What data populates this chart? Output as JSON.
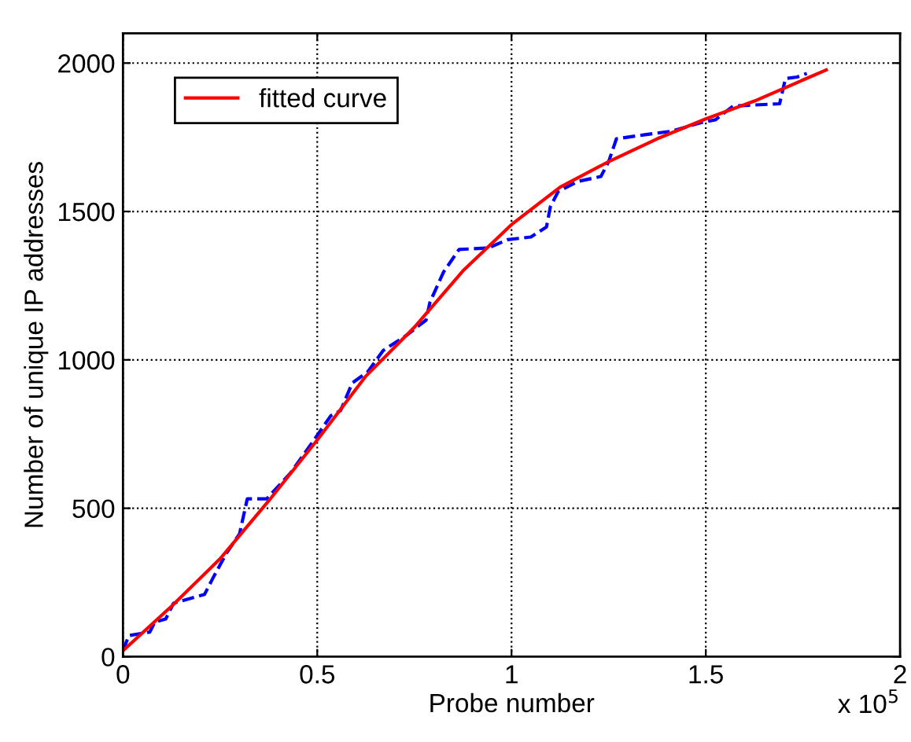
{
  "chart_data": {
    "type": "line",
    "xlabel": "Probe number",
    "ylabel": "Number of unique IP addresses",
    "annotations": [
      "x 10$^{5}$"
    ],
    "xlim": [
      0,
      2
    ],
    "xticks": [
      0,
      0.5,
      1,
      1.5,
      2
    ],
    "ylim": [
      0,
      2100
    ],
    "yticks": [
      0,
      500,
      1000,
      1500,
      2000
    ],
    "grid": true,
    "legend": "top left",
    "series": [
      {
        "color": "#0000ff",
        "line_style": "dashed",
        "x": [
          0,
          0.015,
          0.069,
          0.082,
          0.11,
          0.13,
          0.21,
          0.23,
          0.265,
          0.3,
          0.32,
          0.37,
          0.43,
          0.49,
          0.535,
          0.56,
          0.59,
          0.63,
          0.67,
          0.73,
          0.78,
          0.79,
          0.825,
          0.865,
          0.94,
          0.99,
          1.05,
          1.09,
          1.1,
          1.12,
          1.17,
          1.23,
          1.25,
          1.27,
          1.34,
          1.41,
          1.49,
          1.525,
          1.57,
          1.69,
          1.705,
          1.735,
          1.76
        ],
        "values": [
          20,
          71,
          83,
          117,
          127,
          180,
          210,
          261,
          346,
          414,
          532,
          532,
          617,
          727,
          812,
          829,
          922,
          960,
          1032,
          1083,
          1134,
          1194,
          1296,
          1372,
          1377,
          1405,
          1414,
          1448,
          1516,
          1567,
          1601,
          1618,
          1668,
          1745,
          1758,
          1770,
          1800,
          1809,
          1855,
          1863,
          1948,
          1953,
          1965
        ]
      },
      {
        "name": "fitted curve",
        "color": "#ff0000",
        "line_style": "solid",
        "x": [
          0,
          0.125,
          0.25,
          0.375,
          0.5,
          0.625,
          0.75,
          0.875,
          1.0,
          1.125,
          1.25,
          1.375,
          1.5,
          1.625,
          1.75,
          1.81
        ],
        "values": [
          20,
          170,
          330,
          525,
          730,
          945,
          1110,
          1300,
          1456,
          1582,
          1668,
          1745,
          1812,
          1872,
          1943,
          1977
        ]
      }
    ]
  }
}
